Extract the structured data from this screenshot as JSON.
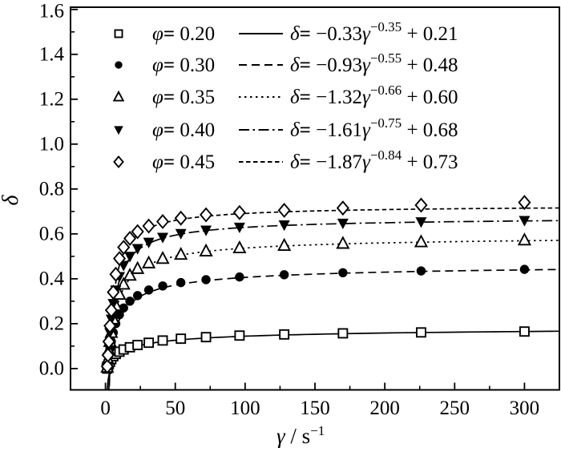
{
  "figure": {
    "background": "#ffffff",
    "foreground": "#000000"
  },
  "chart_data": {
    "type": "scatter",
    "title": "",
    "xlabel_parts": {
      "symbol": "γ",
      "separator": " / s",
      "sup": "−1"
    },
    "ylabel": "δ",
    "xlim": [
      -25,
      325
    ],
    "ylim": [
      -0.095,
      1.61
    ],
    "grid": false,
    "legend_position": "top-left",
    "x_major_ticks": [
      0,
      50,
      100,
      150,
      200,
      250,
      300
    ],
    "x_tick_labels": [
      "0",
      "50",
      "100",
      "150",
      "200",
      "250",
      "300"
    ],
    "x_minor_ticks": [
      25,
      75,
      125,
      175,
      225,
      275
    ],
    "y_major_ticks": [
      0.0,
      0.2,
      0.4,
      0.6,
      0.8,
      1.0,
      1.2,
      1.4,
      1.6
    ],
    "y_tick_labels": [
      "0.0",
      "0.2",
      "0.4",
      "0.6",
      "0.8",
      "1.0",
      "1.2",
      "1.4",
      "1.6"
    ],
    "y_minor_ticks": [
      0.1,
      0.3,
      0.5,
      0.7,
      0.9,
      1.1,
      1.3,
      1.5
    ],
    "x": [
      1.3,
      1.8,
      2.4,
      3.2,
      4.2,
      5.6,
      7.4,
      10,
      13,
      17.5,
      23,
      31,
      41,
      54,
      72,
      96,
      128,
      170,
      226,
      300
    ],
    "series": [
      {
        "phi_symbol": "φ",
        "phi_value": "0.20",
        "marker": "square-open",
        "line_dash": "solid",
        "fit": {
          "A": -0.33,
          "p": -0.35,
          "C": 0.21
        },
        "equation": {
          "lhs": "δ",
          "coef": "−0.33",
          "gamma": "γ",
          "sup": "−0.35",
          "tail": "+ 0.21"
        },
        "y": [
          0.0,
          0.01,
          0.02,
          0.03,
          0.042,
          0.055,
          0.065,
          0.075,
          0.085,
          0.095,
          0.105,
          0.115,
          0.125,
          0.133,
          0.14,
          0.147,
          0.152,
          0.157,
          0.161,
          0.165
        ]
      },
      {
        "phi_symbol": "φ",
        "phi_value": "0.30",
        "marker": "circle-filled",
        "line_dash": "dashed",
        "fit": {
          "A": -0.93,
          "p": -0.55,
          "C": 0.48
        },
        "equation": {
          "lhs": "δ",
          "coef": "−0.93",
          "gamma": "γ",
          "sup": "−0.55",
          "tail": "+ 0.48"
        },
        "y": [
          0.005,
          0.03,
          0.06,
          0.09,
          0.12,
          0.16,
          0.2,
          0.24,
          0.27,
          0.3,
          0.325,
          0.35,
          0.368,
          0.383,
          0.396,
          0.408,
          0.418,
          0.427,
          0.435,
          0.442
        ]
      },
      {
        "phi_symbol": "φ",
        "phi_value": "0.35",
        "marker": "triangle-up-open",
        "line_dash": "dotted",
        "fit": {
          "A": -1.32,
          "p": -0.66,
          "C": 0.6
        },
        "equation": {
          "lhs": "δ",
          "coef": "−1.32",
          "gamma": "γ",
          "sup": "−0.66",
          "tail": "+ 0.60"
        },
        "y": [
          0.005,
          0.04,
          0.08,
          0.12,
          0.16,
          0.22,
          0.28,
          0.33,
          0.375,
          0.415,
          0.445,
          0.47,
          0.49,
          0.508,
          0.523,
          0.537,
          0.548,
          0.557,
          0.564,
          0.572
        ]
      },
      {
        "phi_symbol": "φ",
        "phi_value": "0.40",
        "marker": "triangle-down-filled",
        "line_dash": "dashdot",
        "fit": {
          "A": -1.61,
          "p": -0.75,
          "C": 0.68
        },
        "equation": {
          "lhs": "δ",
          "coef": "−1.61",
          "gamma": "γ",
          "sup": "−0.75",
          "tail": "+ 0.68"
        },
        "y": [
          0.01,
          0.05,
          0.1,
          0.16,
          0.22,
          0.29,
          0.35,
          0.41,
          0.46,
          0.5,
          0.535,
          0.563,
          0.585,
          0.602,
          0.617,
          0.63,
          0.64,
          0.648,
          0.654,
          0.66
        ]
      },
      {
        "phi_symbol": "φ",
        "phi_value": "0.45",
        "marker": "diamond-open",
        "line_dash": "shortdash",
        "fit": {
          "A": -1.87,
          "p": -0.84,
          "C": 0.73
        },
        "equation": {
          "lhs": "δ",
          "coef": "−1.87",
          "gamma": "γ",
          "sup": "−0.84",
          "tail": "+ 0.73"
        },
        "y": [
          0.01,
          0.06,
          0.12,
          0.19,
          0.26,
          0.34,
          0.42,
          0.49,
          0.54,
          0.58,
          0.61,
          0.635,
          0.655,
          0.67,
          0.685,
          0.695,
          0.705,
          0.715,
          0.728,
          0.74
        ]
      }
    ]
  }
}
